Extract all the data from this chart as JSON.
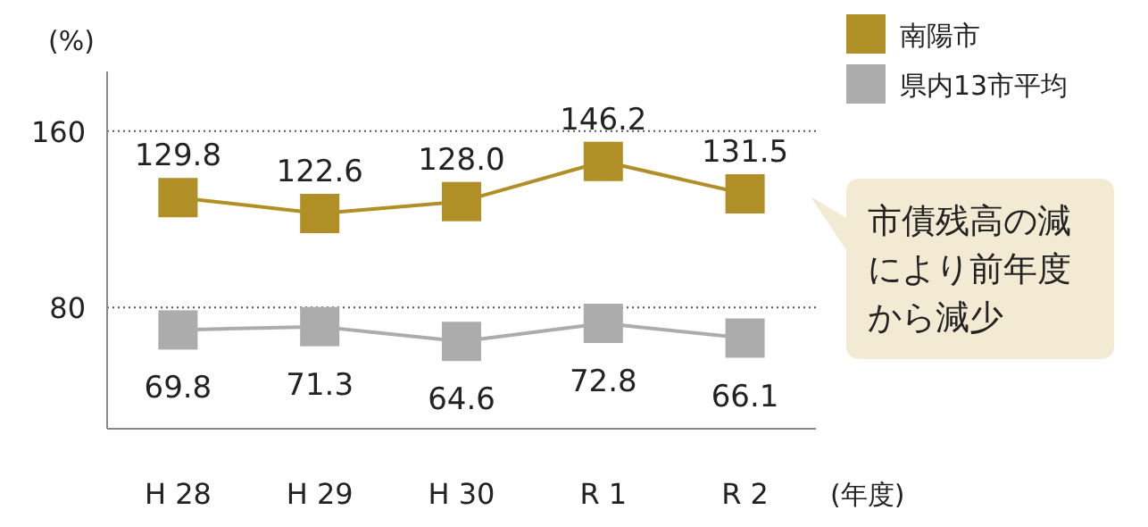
{
  "chart_data": {
    "type": "line",
    "ylabel": "(%)",
    "xlabel": "(年度)",
    "categories": [
      "H 28",
      "H 29",
      "H 30",
      "R 1",
      "R 2"
    ],
    "series": [
      {
        "name": "南陽市",
        "color": "#b08f26",
        "values": [
          129.8,
          122.6,
          128.0,
          146.2,
          131.5
        ],
        "value_labels": [
          "129.8",
          "122.6",
          "128.0",
          "146.2",
          "131.5"
        ]
      },
      {
        "name": "県内13市平均",
        "color": "#acacac",
        "values": [
          69.8,
          71.3,
          64.6,
          72.8,
          66.1
        ],
        "value_labels": [
          "69.8",
          "71.3",
          "64.6",
          "72.8",
          "66.1"
        ]
      }
    ],
    "ylim": [
      25,
      187
    ],
    "yticks": [
      80,
      160
    ],
    "grid": "y",
    "legend": "top right",
    "marker": "square",
    "annotations": [
      "市債残高の減により前年度から減少"
    ]
  }
}
